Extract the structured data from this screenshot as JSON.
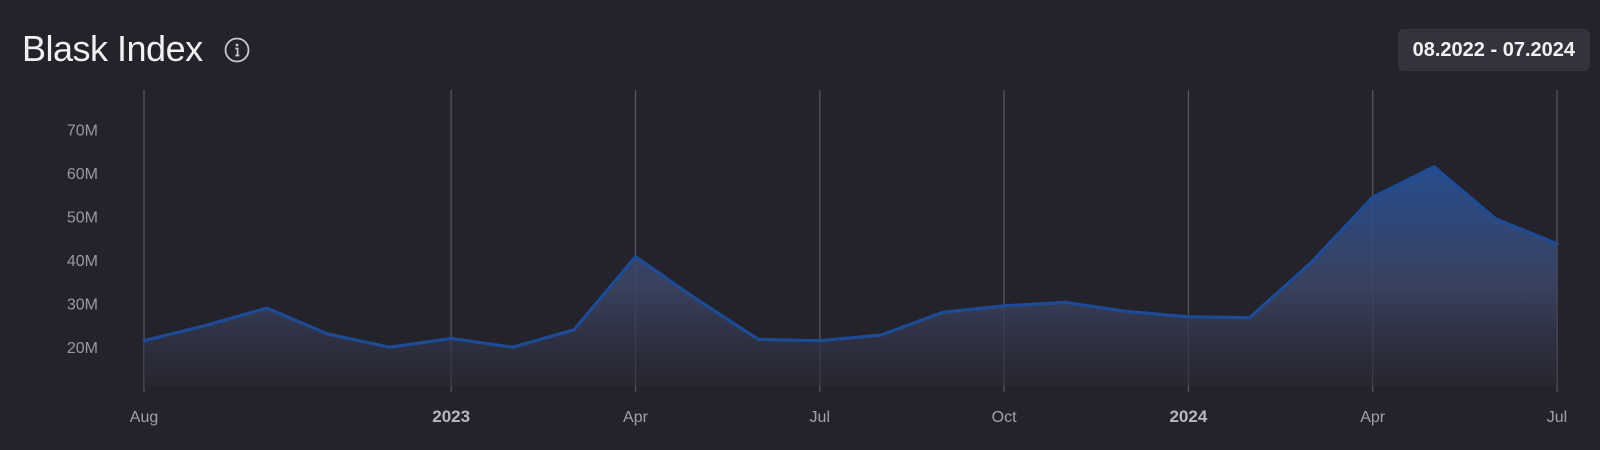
{
  "header": {
    "title": "Blask Index",
    "date_range": "08.2022 - 07.2024"
  },
  "colors": {
    "background": "#24222b",
    "line": "#1d4b96",
    "gridline": "#6a6973"
  },
  "icons": {
    "info": "info-circle-icon"
  },
  "chart_data": {
    "type": "area",
    "title": "Blask Index",
    "xlabel": "",
    "ylabel": "",
    "ylim": [
      12,
      75
    ],
    "y_ticks": [
      {
        "value": 20,
        "label": "20M"
      },
      {
        "value": 30,
        "label": "30M"
      },
      {
        "value": 40,
        "label": "40M"
      },
      {
        "value": 50,
        "label": "50M"
      },
      {
        "value": 60,
        "label": "60M"
      },
      {
        "value": 70,
        "label": "70M"
      }
    ],
    "x_ticks": [
      {
        "x": "2022-08",
        "label": "Aug",
        "major": false
      },
      {
        "x": "2023-01",
        "label": "2023",
        "major": true
      },
      {
        "x": "2023-04",
        "label": "Apr",
        "major": false
      },
      {
        "x": "2023-07",
        "label": "Jul",
        "major": false
      },
      {
        "x": "2023-10",
        "label": "Oct",
        "major": false
      },
      {
        "x": "2024-01",
        "label": "2024",
        "major": true
      },
      {
        "x": "2024-04",
        "label": "Apr",
        "major": false
      },
      {
        "x": "2024-07",
        "label": "Jul",
        "major": false
      }
    ],
    "grid": "vertical",
    "x": [
      "2022-08",
      "2022-09",
      "2022-10",
      "2022-11",
      "2022-12",
      "2023-01",
      "2023-02",
      "2023-03",
      "2023-04",
      "2023-05",
      "2023-06",
      "2023-07",
      "2023-08",
      "2023-09",
      "2023-10",
      "2023-11",
      "2023-12",
      "2024-01",
      "2024-02",
      "2024-03",
      "2024-04",
      "2024-05",
      "2024-06",
      "2024-07"
    ],
    "series": [
      {
        "values": [
          21.5,
          25,
          29,
          23,
          20,
          22,
          20,
          24,
          40.8,
          31,
          21.8,
          21.5,
          22.8,
          28,
          29.5,
          30.3,
          28.2,
          27,
          26.8,
          39.5,
          54.5,
          61.5,
          49.5,
          43.8
        ]
      }
    ]
  }
}
